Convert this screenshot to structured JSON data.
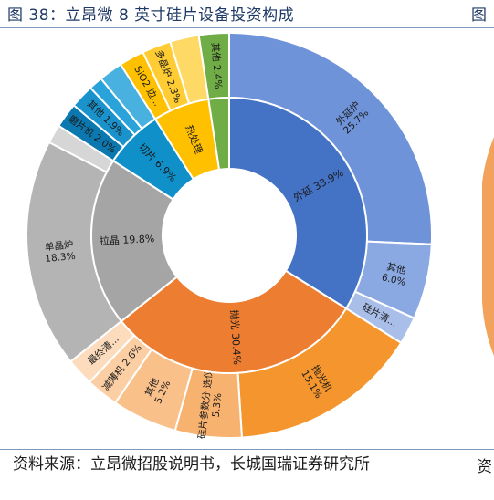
{
  "header": {
    "title": "图 38：立昂微 8 英寸硅片设备投资构成",
    "next_figure_fragment": "图"
  },
  "footer": {
    "source": "资料来源：立昂微招股说明书，长城国瑞证券研究所",
    "next_source_fragment": "资"
  },
  "chart_data": {
    "type": "sunburst",
    "title": "",
    "inner_ring": [
      {
        "label": "外延 33.9%",
        "value": 33.9,
        "color": "#4472c4"
      },
      {
        "label": "抛光 30.4%",
        "value": 30.4,
        "color": "#ed7d31"
      },
      {
        "label": "拉晶 19.8%",
        "value": 19.8,
        "color": "#a5a5a5"
      },
      {
        "label": "切片 6.9%",
        "value": 6.9,
        "color": "#1090c8"
      },
      {
        "label": "热处理",
        "value": 6.6,
        "color": "#ffc000"
      },
      {
        "label": "",
        "value": 2.4,
        "color": "#70ad47"
      }
    ],
    "outer_ring": [
      {
        "label": "外延炉 25.7%",
        "value": 25.7,
        "color": "#6f93d8",
        "parent": "外延"
      },
      {
        "label": "其他 6.0%",
        "value": 6.0,
        "color": "#8aa9e2",
        "parent": "外延"
      },
      {
        "label": "硅片清...",
        "value": 2.2,
        "color": "#a9bfea",
        "parent": "外延"
      },
      {
        "label": "抛光机 15.1%",
        "value": 15.1,
        "color": "#f4952d",
        "parent": "抛光"
      },
      {
        "label": "硅片参数分 选仪 5.3%",
        "value": 5.3,
        "color": "#f8b270",
        "parent": "抛光"
      },
      {
        "label": "其他 5.2%",
        "value": 5.2,
        "color": "#f9c08a",
        "parent": "抛光"
      },
      {
        "label": "减薄机 2.6%",
        "value": 2.6,
        "color": "#fbcea3",
        "parent": "抛光"
      },
      {
        "label": "最终清...",
        "value": 2.2,
        "color": "#fcdcbd",
        "parent": "抛光"
      },
      {
        "label": "单晶炉 18.3%",
        "value": 18.3,
        "color": "#b4b4b4",
        "parent": "拉晶"
      },
      {
        "label": "",
        "value": 1.5,
        "color": "#d6d6d6",
        "parent": "拉晶"
      },
      {
        "label": "磨片机 2.0%",
        "value": 2.0,
        "color": "#0b78b0",
        "parent": "切片"
      },
      {
        "label": "其他 1.9%",
        "value": 1.9,
        "color": "#1a92cc",
        "parent": "切片"
      },
      {
        "label": "",
        "value": 1.1,
        "color": "#2aa3da",
        "parent": "切片"
      },
      {
        "label": "",
        "value": 1.9,
        "color": "#48b1e0",
        "parent": "切片"
      },
      {
        "label": "SiO2 边...",
        "value": 2.0,
        "color": "#ffc000",
        "parent": "热处理"
      },
      {
        "label": "多晶炉 2.3%",
        "value": 2.3,
        "color": "#ffcd33",
        "parent": "热处理"
      },
      {
        "label": "",
        "value": 2.3,
        "color": "#ffd966",
        "parent": "热处理"
      },
      {
        "label": "其他 2.4%",
        "value": 2.4,
        "color": "#70ad47",
        "parent": ""
      }
    ],
    "legend": "none"
  }
}
